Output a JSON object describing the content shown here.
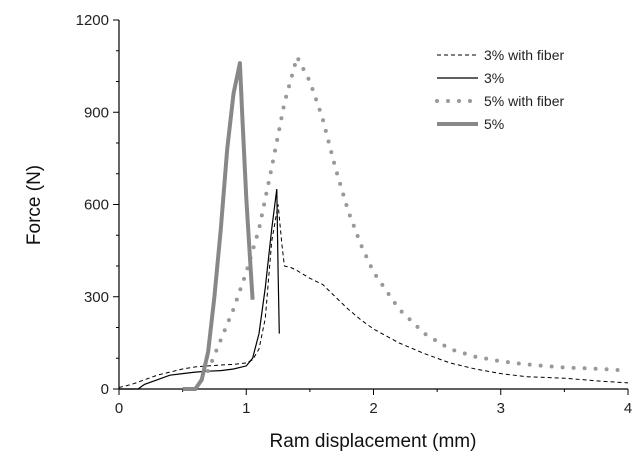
{
  "chart_data": {
    "type": "line",
    "xlabel": "Ram displacement (mm)",
    "ylabel": "Force (N)",
    "xlim": [
      0,
      4
    ],
    "ylim": [
      0,
      1200
    ],
    "xticks": [
      0,
      1,
      2,
      3,
      4
    ],
    "yticks": [
      0,
      300,
      600,
      900,
      1200
    ],
    "grid": false,
    "legend_position": "top-right",
    "series": [
      {
        "name": "3% with fiber",
        "style": "dashed-thin",
        "color": "#000000",
        "x": [
          0.0,
          0.1,
          0.2,
          0.3,
          0.4,
          0.5,
          0.6,
          0.7,
          0.8,
          0.9,
          1.0,
          1.05,
          1.1,
          1.15,
          1.2,
          1.25,
          1.28,
          1.3,
          1.35,
          1.4,
          1.5,
          1.6,
          1.7,
          1.8,
          1.9,
          2.0,
          2.2,
          2.4,
          2.6,
          2.8,
          3.0,
          3.2,
          3.5,
          3.8,
          4.0
        ],
        "y": [
          5,
          15,
          30,
          45,
          55,
          65,
          72,
          75,
          78,
          80,
          85,
          95,
          130,
          230,
          480,
          600,
          470,
          400,
          395,
          385,
          360,
          340,
          300,
          260,
          225,
          195,
          150,
          115,
          85,
          65,
          50,
          40,
          35,
          25,
          20
        ]
      },
      {
        "name": "3%",
        "style": "solid-thin",
        "color": "#000000",
        "x": [
          0.0,
          0.15,
          0.2,
          0.3,
          0.4,
          0.5,
          0.6,
          0.7,
          0.8,
          0.9,
          1.0,
          1.05,
          1.1,
          1.15,
          1.2,
          1.24,
          1.25,
          1.26
        ],
        "y": [
          0,
          0,
          15,
          30,
          45,
          50,
          55,
          58,
          60,
          65,
          75,
          100,
          180,
          330,
          520,
          650,
          380,
          180
        ]
      },
      {
        "name": "5% with fiber",
        "style": "dotted-thick",
        "color": "#999999",
        "x": [
          0.6,
          0.7,
          0.8,
          0.9,
          1.0,
          1.1,
          1.2,
          1.3,
          1.4,
          1.5,
          1.6,
          1.7,
          1.8,
          1.9,
          2.0,
          2.2,
          2.4,
          2.6,
          2.8,
          3.0,
          3.2,
          3.5,
          3.8,
          4.0
        ],
        "y": [
          0,
          60,
          160,
          260,
          380,
          520,
          720,
          930,
          1080,
          1000,
          880,
          720,
          580,
          470,
          380,
          260,
          180,
          130,
          105,
          90,
          80,
          70,
          65,
          60
        ]
      },
      {
        "name": "5%",
        "style": "solid-thick",
        "color": "#888888",
        "x": [
          0.5,
          0.6,
          0.65,
          0.7,
          0.75,
          0.8,
          0.85,
          0.9,
          0.95,
          0.97,
          1.0,
          1.03,
          1.05
        ],
        "y": [
          0,
          0,
          30,
          120,
          300,
          520,
          780,
          960,
          1060,
          880,
          620,
          420,
          290
        ]
      }
    ]
  }
}
